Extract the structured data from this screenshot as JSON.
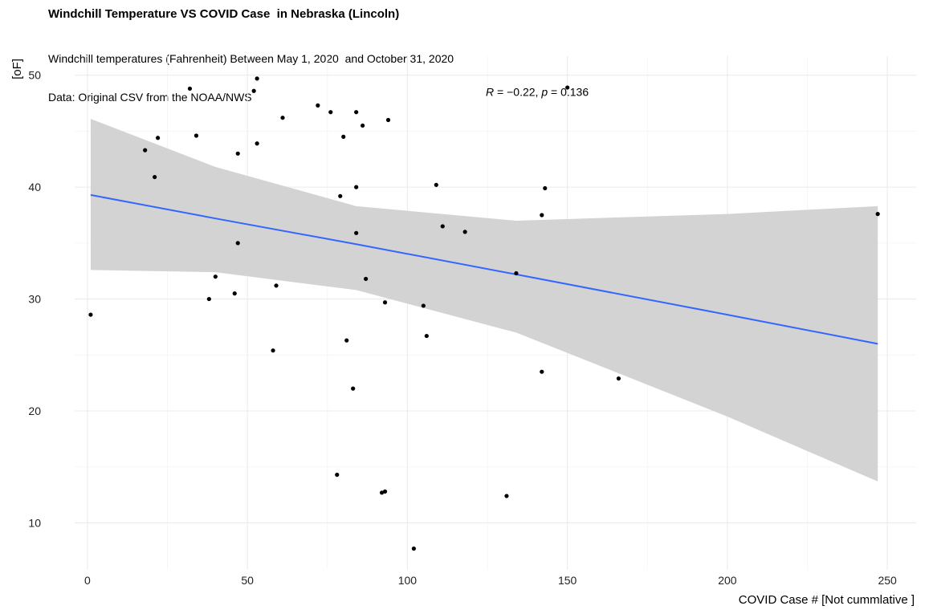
{
  "chart_data": {
    "type": "scatter",
    "title": "Windchill Temperature VS COVID Case  in Nebraska (Lincoln)",
    "subtitle_lines": [
      "Windchill temperatures (Fahrenheit) Between May 1, 2020  and October 31, 2020",
      "Data: Original CSV from the NOAA/NWS"
    ],
    "xlabel": "COVID Case # [Not cummlative ]",
    "ylabel": "[oF]",
    "xlim": [
      -4,
      259
    ],
    "ylim": [
      5.8,
      51.7
    ],
    "xticks": [
      0,
      50,
      100,
      150,
      200,
      250
    ],
    "yticks": [
      10,
      20,
      30,
      40,
      50
    ],
    "grid": true,
    "annotation": {
      "prefix_var": "R",
      "prefix_text": " = −0.22, ",
      "p_var": "p",
      "p_text": " = 0.136",
      "x": 124.5,
      "y": 48.5
    },
    "points": [
      {
        "x": 1,
        "y": 28.6
      },
      {
        "x": 18,
        "y": 43.3
      },
      {
        "x": 21,
        "y": 40.9
      },
      {
        "x": 22,
        "y": 44.4
      },
      {
        "x": 32,
        "y": 48.8
      },
      {
        "x": 34,
        "y": 44.6
      },
      {
        "x": 38,
        "y": 30.0
      },
      {
        "x": 40,
        "y": 32.0
      },
      {
        "x": 46,
        "y": 30.5
      },
      {
        "x": 47,
        "y": 43.0
      },
      {
        "x": 47,
        "y": 35.0
      },
      {
        "x": 52,
        "y": 48.6
      },
      {
        "x": 53,
        "y": 49.7
      },
      {
        "x": 53,
        "y": 43.9
      },
      {
        "x": 58,
        "y": 25.4
      },
      {
        "x": 59,
        "y": 31.2
      },
      {
        "x": 61,
        "y": 46.2
      },
      {
        "x": 72,
        "y": 47.3
      },
      {
        "x": 76,
        "y": 46.7
      },
      {
        "x": 78,
        "y": 14.3
      },
      {
        "x": 79,
        "y": 39.2
      },
      {
        "x": 80,
        "y": 44.5
      },
      {
        "x": 81,
        "y": 26.3
      },
      {
        "x": 83,
        "y": 22.0
      },
      {
        "x": 84,
        "y": 46.7
      },
      {
        "x": 84,
        "y": 40.0
      },
      {
        "x": 84,
        "y": 35.9
      },
      {
        "x": 86,
        "y": 45.5
      },
      {
        "x": 87,
        "y": 31.8
      },
      {
        "x": 92,
        "y": 12.7
      },
      {
        "x": 93,
        "y": 12.8
      },
      {
        "x": 93,
        "y": 29.7
      },
      {
        "x": 94,
        "y": 46.0
      },
      {
        "x": 102,
        "y": 7.7
      },
      {
        "x": 105,
        "y": 29.4
      },
      {
        "x": 106,
        "y": 26.7
      },
      {
        "x": 109,
        "y": 40.2
      },
      {
        "x": 111,
        "y": 36.5
      },
      {
        "x": 118,
        "y": 36.0
      },
      {
        "x": 131,
        "y": 12.4
      },
      {
        "x": 134,
        "y": 32.3
      },
      {
        "x": 142,
        "y": 37.5
      },
      {
        "x": 142,
        "y": 23.5
      },
      {
        "x": 143,
        "y": 39.9
      },
      {
        "x": 150,
        "y": 48.9
      },
      {
        "x": 166,
        "y": 22.9
      },
      {
        "x": 247,
        "y": 37.6
      }
    ],
    "regression": {
      "x": [
        1,
        40,
        84,
        134,
        200,
        247
      ],
      "fit": [
        39.3,
        37.2,
        34.9,
        32.2,
        28.6,
        26.0
      ],
      "lower": [
        32.6,
        32.4,
        30.8,
        27.0,
        19.5,
        13.7
      ],
      "upper": [
        46.1,
        41.8,
        38.3,
        37.0,
        37.6,
        38.3
      ]
    },
    "colors": {
      "line": "#3366FF",
      "band": "#D3D3D3",
      "points": "#000000",
      "grid": "#EBEBEB"
    }
  }
}
